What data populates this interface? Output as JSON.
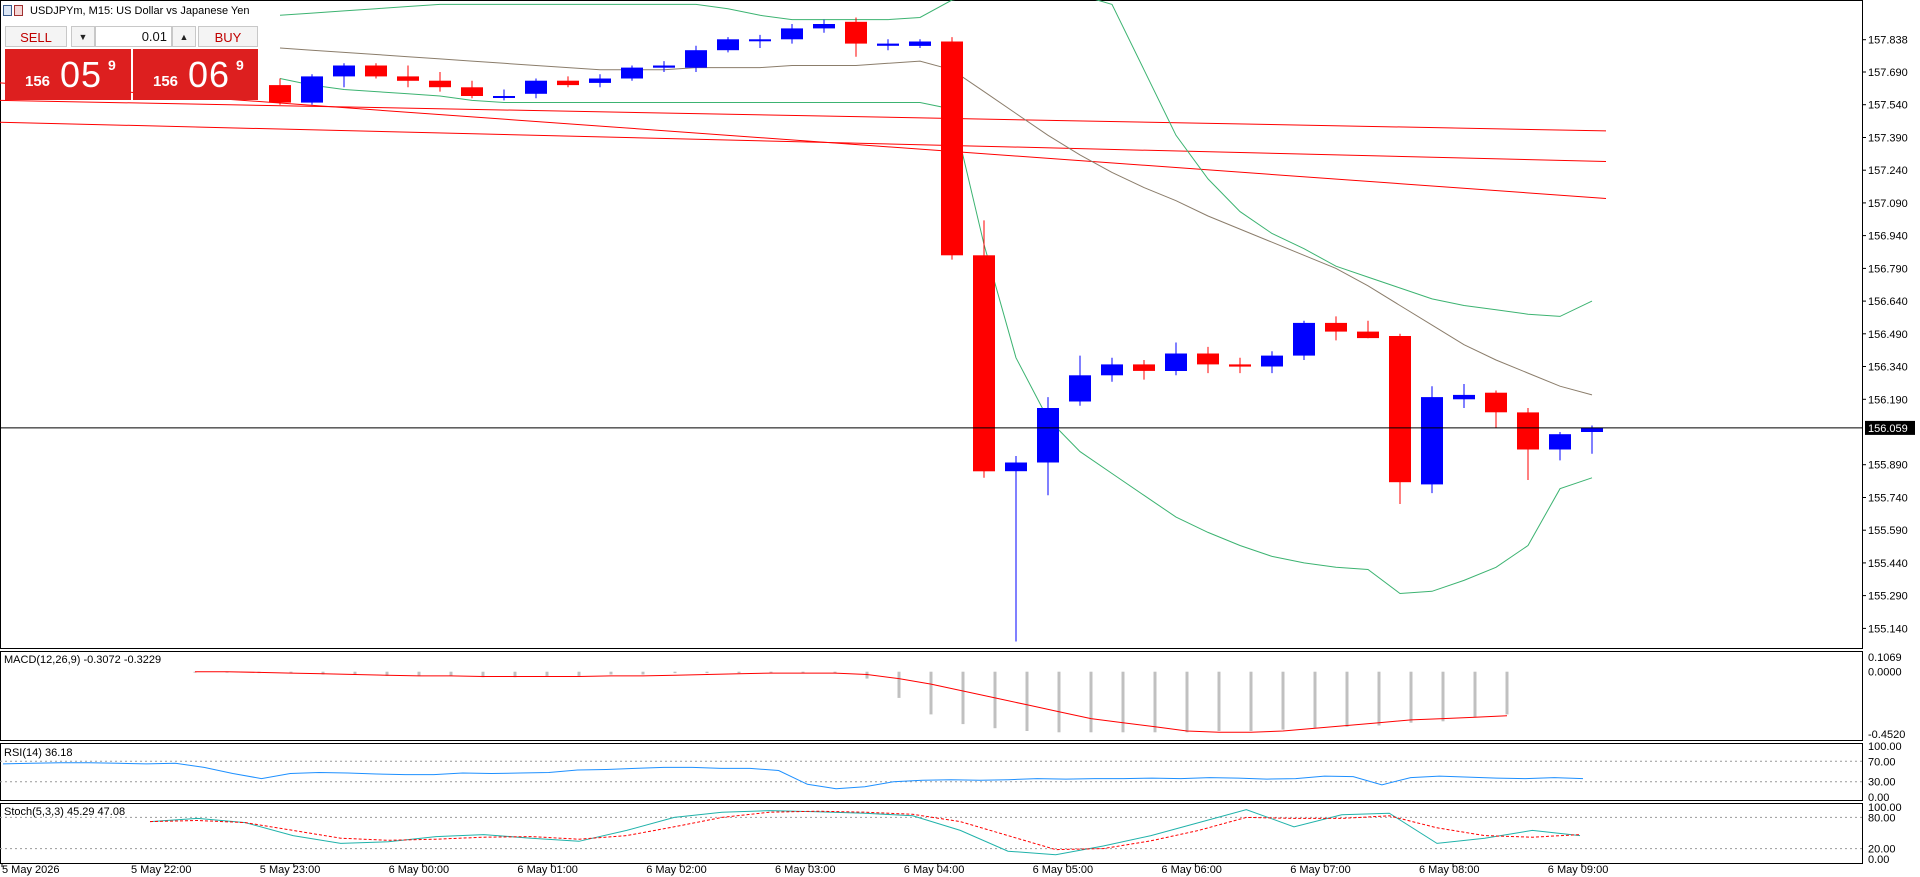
{
  "header": {
    "symbol_title": "USDJPYm, M15:  US Dollar vs Japanese Yen"
  },
  "trade_panel": {
    "sell_label": "SELL",
    "buy_label": "BUY",
    "lot": "0.01",
    "bid_small": "156",
    "bid_big": "05",
    "bid_sup": "9",
    "ask_small": "156",
    "ask_big": "06",
    "ask_sup": "9"
  },
  "colors": {
    "bull": "#0000ff",
    "bear": "#ff0000",
    "bands": "#3cb371",
    "ma": "#8b7d6b",
    "envelope": "#ff0000",
    "macd_hist": "#c0c0c0",
    "macd_signal": "#ff0000",
    "rsi": "#1e90ff",
    "stoch_main": "#20b2aa",
    "stoch_signal": "#ff0000",
    "grid": "#000000",
    "bid_line": "#000000"
  },
  "chart_data": [
    {
      "type": "candlestick",
      "panel": "main",
      "symbol": "USDJPYm",
      "timeframe": "M15",
      "ylim": [
        155.05,
        158.02
      ],
      "y_ticks": [
        "157.838",
        "157.690",
        "157.540",
        "157.390",
        "157.240",
        "157.090",
        "156.940",
        "156.790",
        "156.640",
        "156.490",
        "156.340",
        "156.190",
        "156.059",
        "155.890",
        "155.740",
        "155.590",
        "155.440",
        "155.290",
        "155.140"
      ],
      "current_price": "156.059",
      "x_labels": [
        "5 May 2026",
        "5 May 22:00",
        "5 May 23:00",
        "6 May 00:00",
        "6 May 01:00",
        "6 May 02:00",
        "6 May 03:00",
        "6 May 04:00",
        "6 May 05:00",
        "6 May 06:00",
        "6 May 07:00",
        "6 May 08:00",
        "6 May 09:00"
      ],
      "candles": [
        {
          "o": 157.63,
          "h": 157.66,
          "l": 157.54,
          "c": 157.55
        },
        {
          "o": 157.55,
          "h": 157.68,
          "l": 157.54,
          "c": 157.67
        },
        {
          "o": 157.67,
          "h": 157.73,
          "l": 157.62,
          "c": 157.72
        },
        {
          "o": 157.72,
          "h": 157.73,
          "l": 157.66,
          "c": 157.67
        },
        {
          "o": 157.67,
          "h": 157.72,
          "l": 157.62,
          "c": 157.65
        },
        {
          "o": 157.65,
          "h": 157.69,
          "l": 157.6,
          "c": 157.62
        },
        {
          "o": 157.62,
          "h": 157.65,
          "l": 157.57,
          "c": 157.58
        },
        {
          "o": 157.58,
          "h": 157.61,
          "l": 157.56,
          "c": 157.58
        },
        {
          "o": 157.59,
          "h": 157.66,
          "l": 157.57,
          "c": 157.65
        },
        {
          "o": 157.65,
          "h": 157.67,
          "l": 157.62,
          "c": 157.63
        },
        {
          "o": 157.64,
          "h": 157.68,
          "l": 157.62,
          "c": 157.66
        },
        {
          "o": 157.66,
          "h": 157.72,
          "l": 157.65,
          "c": 157.71
        },
        {
          "o": 157.71,
          "h": 157.74,
          "l": 157.69,
          "c": 157.72
        },
        {
          "o": 157.71,
          "h": 157.81,
          "l": 157.69,
          "c": 157.79
        },
        {
          "o": 157.79,
          "h": 157.85,
          "l": 157.78,
          "c": 157.84
        },
        {
          "o": 157.84,
          "h": 157.86,
          "l": 157.8,
          "c": 157.84
        },
        {
          "o": 157.84,
          "h": 157.91,
          "l": 157.82,
          "c": 157.89
        },
        {
          "o": 157.89,
          "h": 157.93,
          "l": 157.87,
          "c": 157.91
        },
        {
          "o": 157.92,
          "h": 157.94,
          "l": 157.76,
          "c": 157.82
        },
        {
          "o": 157.81,
          "h": 157.84,
          "l": 157.79,
          "c": 157.82
        },
        {
          "o": 157.81,
          "h": 157.84,
          "l": 157.8,
          "c": 157.83
        },
        {
          "o": 157.83,
          "h": 157.85,
          "l": 156.83,
          "c": 156.85
        },
        {
          "o": 156.85,
          "h": 157.01,
          "l": 155.83,
          "c": 155.86
        },
        {
          "o": 155.86,
          "h": 155.93,
          "l": 155.08,
          "c": 155.9
        },
        {
          "o": 155.9,
          "h": 156.2,
          "l": 155.75,
          "c": 156.15
        },
        {
          "o": 156.18,
          "h": 156.39,
          "l": 156.16,
          "c": 156.3
        },
        {
          "o": 156.3,
          "h": 156.38,
          "l": 156.27,
          "c": 156.35
        },
        {
          "o": 156.35,
          "h": 156.37,
          "l": 156.28,
          "c": 156.32
        },
        {
          "o": 156.32,
          "h": 156.45,
          "l": 156.3,
          "c": 156.4
        },
        {
          "o": 156.4,
          "h": 156.43,
          "l": 156.31,
          "c": 156.35
        },
        {
          "o": 156.35,
          "h": 156.38,
          "l": 156.31,
          "c": 156.34
        },
        {
          "o": 156.34,
          "h": 156.41,
          "l": 156.31,
          "c": 156.39
        },
        {
          "o": 156.39,
          "h": 156.55,
          "l": 156.37,
          "c": 156.54
        },
        {
          "o": 156.54,
          "h": 156.57,
          "l": 156.46,
          "c": 156.5
        },
        {
          "o": 156.5,
          "h": 156.55,
          "l": 156.47,
          "c": 156.47
        },
        {
          "o": 156.48,
          "h": 156.49,
          "l": 155.71,
          "c": 155.81
        },
        {
          "o": 155.8,
          "h": 156.25,
          "l": 155.76,
          "c": 156.2
        },
        {
          "o": 156.19,
          "h": 156.26,
          "l": 156.15,
          "c": 156.21
        },
        {
          "o": 156.22,
          "h": 156.23,
          "l": 156.06,
          "c": 156.13
        },
        {
          "o": 156.13,
          "h": 156.15,
          "l": 155.82,
          "c": 155.96
        },
        {
          "o": 155.96,
          "h": 156.04,
          "l": 155.91,
          "c": 156.03
        },
        {
          "o": 156.04,
          "h": 156.07,
          "l": 155.94,
          "c": 156.06
        }
      ],
      "bollinger_upper": [
        157.95,
        157.96,
        157.97,
        157.98,
        157.99,
        158.0,
        158.0,
        158.0,
        158.0,
        158.0,
        158.0,
        158.0,
        158.0,
        158.0,
        157.98,
        157.95,
        157.93,
        157.93,
        157.93,
        157.93,
        157.94,
        158.02,
        158.6,
        158.8,
        158.6,
        158.3,
        158.0,
        157.7,
        157.4,
        157.2,
        157.05,
        156.95,
        156.88,
        156.8,
        156.75,
        156.7,
        156.65,
        156.62,
        156.6,
        156.58,
        156.57,
        156.64
      ],
      "bollinger_lower": [
        157.66,
        157.63,
        157.61,
        157.6,
        157.59,
        157.58,
        157.56,
        157.55,
        157.55,
        157.55,
        157.55,
        157.55,
        157.55,
        157.55,
        157.55,
        157.55,
        157.55,
        157.55,
        157.55,
        157.55,
        157.55,
        157.52,
        156.9,
        156.38,
        156.1,
        155.95,
        155.85,
        155.75,
        155.65,
        155.58,
        155.52,
        155.47,
        155.44,
        155.42,
        155.41,
        155.3,
        155.31,
        155.36,
        155.42,
        155.52,
        155.78,
        155.83
      ],
      "ma_line": [
        157.8,
        157.79,
        157.78,
        157.77,
        157.76,
        157.75,
        157.74,
        157.73,
        157.72,
        157.71,
        157.7,
        157.7,
        157.7,
        157.71,
        157.71,
        157.71,
        157.72,
        157.72,
        157.72,
        157.73,
        157.74,
        157.7,
        157.6,
        157.5,
        157.4,
        157.31,
        157.23,
        157.16,
        157.1,
        157.03,
        156.97,
        156.91,
        156.85,
        156.79,
        156.71,
        156.62,
        156.53,
        156.44,
        156.37,
        156.31,
        156.25,
        156.21
      ],
      "envelope_lines": [
        {
          "from": 157.56,
          "to": 157.42
        },
        {
          "from": 157.46,
          "to": 157.28
        },
        {
          "from": 157.64,
          "to": 157.11
        }
      ]
    },
    {
      "type": "bar",
      "panel": "macd",
      "label": "MACD(12,26,9) -0.3072 -0.3229",
      "ylim": [
        -0.452,
        0.1069
      ],
      "y_ticks": [
        "0.1069",
        "0.0000",
        "-0.4520"
      ],
      "histogram": [
        0.0,
        0.0,
        -0.01,
        -0.01,
        -0.02,
        -0.02,
        -0.03,
        -0.03,
        -0.03,
        -0.04,
        -0.04,
        -0.03,
        -0.03,
        -0.02,
        -0.02,
        -0.01,
        -0.01,
        -0.01,
        -0.01,
        -0.01,
        -0.01,
        -0.05,
        -0.19,
        -0.31,
        -0.38,
        -0.41,
        -0.43,
        -0.44,
        -0.44,
        -0.44,
        -0.44,
        -0.44,
        -0.43,
        -0.43,
        -0.42,
        -0.41,
        -0.4,
        -0.39,
        -0.37,
        -0.36,
        -0.33,
        -0.31
      ],
      "signal": [
        0.0,
        0.0,
        -0.005,
        -0.01,
        -0.015,
        -0.02,
        -0.025,
        -0.03,
        -0.03,
        -0.035,
        -0.035,
        -0.035,
        -0.035,
        -0.03,
        -0.03,
        -0.025,
        -0.02,
        -0.015,
        -0.01,
        -0.01,
        -0.01,
        -0.02,
        -0.05,
        -0.09,
        -0.14,
        -0.19,
        -0.24,
        -0.29,
        -0.34,
        -0.37,
        -0.4,
        -0.43,
        -0.44,
        -0.44,
        -0.43,
        -0.41,
        -0.39,
        -0.37,
        -0.35,
        -0.34,
        -0.33,
        -0.32
      ]
    },
    {
      "type": "line",
      "panel": "rsi",
      "label": "RSI(14) 36.18",
      "ylim": [
        0,
        100
      ],
      "y_ticks": [
        "100.00",
        "70.00",
        "30.00",
        "0.00"
      ],
      "levels": [
        70,
        30
      ],
      "values": [
        65,
        66,
        67,
        67,
        66,
        65,
        66,
        58,
        46,
        36,
        46,
        48,
        47,
        45,
        44,
        44,
        47,
        46,
        47,
        48,
        53,
        54,
        56,
        58,
        58,
        56,
        56,
        52,
        25,
        16,
        20,
        30,
        33,
        34,
        33,
        34,
        36,
        35,
        36,
        36,
        37,
        36,
        38,
        37,
        35,
        36,
        41,
        40,
        24,
        38,
        41,
        39,
        37,
        36,
        38,
        36
      ]
    },
    {
      "type": "line",
      "panel": "stoch",
      "label": "Stoch(5,3,3) 45.29 47.08",
      "ylim": [
        0,
        100
      ],
      "y_ticks": [
        "100.00",
        "80.00",
        "20.00",
        "0.00"
      ],
      "levels": [
        80,
        20
      ],
      "main": [
        72,
        78,
        70,
        45,
        30,
        33,
        43,
        47,
        40,
        34,
        55,
        80,
        90,
        93,
        91,
        88,
        83,
        55,
        15,
        8,
        25,
        45,
        70,
        95,
        62,
        85,
        88,
        30,
        40,
        55,
        45
      ],
      "signal": [
        72,
        74,
        70,
        55,
        40,
        36,
        38,
        42,
        43,
        38,
        45,
        62,
        80,
        90,
        92,
        90,
        86,
        72,
        45,
        18,
        20,
        35,
        55,
        80,
        78,
        78,
        83,
        60,
        45,
        42,
        47
      ]
    }
  ]
}
